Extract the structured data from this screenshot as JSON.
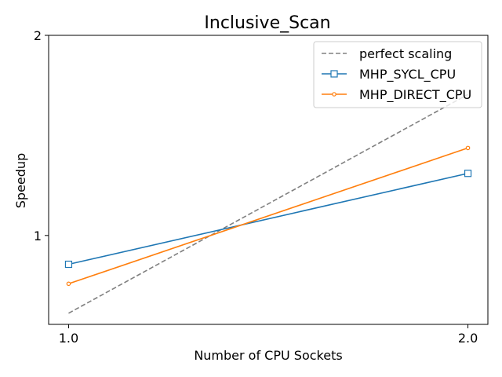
{
  "chart_data": {
    "type": "line",
    "title": "Inclusive_Scan",
    "xlabel": "Number of CPU Sockets",
    "ylabel": "Speedup",
    "x": [
      1.0,
      2.0
    ],
    "x_tick_labels": [
      "1.0",
      "2.0"
    ],
    "y_ticks": [
      1,
      2
    ],
    "y_tick_labels": [
      "1",
      "2"
    ],
    "xlim": [
      0.95,
      2.05
    ],
    "ylim": [
      0.735,
      2.0
    ],
    "y_scale": "log",
    "grid": false,
    "legend_position": "top-right",
    "series": [
      {
        "name": "perfect scaling",
        "values": [
          0.764,
          1.63
        ],
        "color": "#808080",
        "style": "dashed",
        "marker": "none"
      },
      {
        "name": "MHP_SYCL_CPU",
        "values": [
          0.905,
          1.24
        ],
        "color": "#1f77b4",
        "style": "solid",
        "marker": "square"
      },
      {
        "name": "MHP_DIRECT_CPU",
        "values": [
          0.846,
          1.354
        ],
        "color": "#ff7f0e",
        "style": "solid",
        "marker": "circle"
      }
    ]
  }
}
